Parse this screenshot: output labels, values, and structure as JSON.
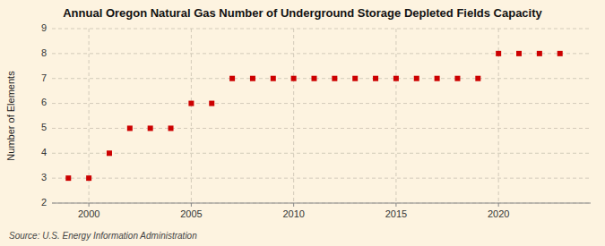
{
  "chart_data": {
    "type": "scatter",
    "title": "Annual Oregon Natural Gas Number of Underground Storage Depleted Fields Capacity",
    "ylabel": "Number of Elements",
    "source": "Source: U.S. Energy Information Administration",
    "x": [
      1999,
      2000,
      2001,
      2002,
      2003,
      2004,
      2005,
      2006,
      2007,
      2008,
      2009,
      2010,
      2011,
      2012,
      2013,
      2014,
      2015,
      2016,
      2017,
      2018,
      2019,
      2020,
      2021,
      2022,
      2023
    ],
    "values": [
      3,
      3,
      4,
      5,
      5,
      5,
      6,
      6,
      7,
      7,
      7,
      7,
      7,
      7,
      7,
      7,
      7,
      7,
      7,
      7,
      7,
      8,
      8,
      8,
      8
    ],
    "color": "#cc0000",
    "marker": "square",
    "xlim": [
      1998.2,
      2024.5
    ],
    "ylim": [
      2,
      9
    ],
    "xticks": [
      2000,
      2005,
      2010,
      2015,
      2020
    ],
    "yticks": [
      2,
      3,
      4,
      5,
      6,
      7,
      8,
      9
    ],
    "grid": true
  }
}
